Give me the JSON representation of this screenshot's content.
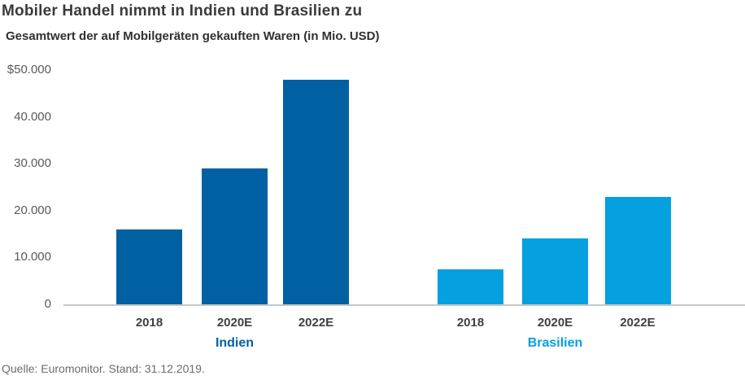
{
  "header": {
    "title": "Mobiler Handel nimmt in Indien und Brasilien zu",
    "subtitle": "Gesamtwert der auf Mobilgeräten gekauften Waren (in Mio. USD)"
  },
  "chart_data": {
    "type": "bar",
    "title": "Mobiler Handel nimmt in Indien und Brasilien zu",
    "subtitle": "Gesamtwert der auf Mobilgeräten gekauften Waren (in Mio. USD)",
    "categories": [
      "2018",
      "2020E",
      "2022E"
    ],
    "series": [
      {
        "name": "Indien",
        "values": [
          16000,
          29000,
          48000
        ],
        "color": "#0060a2"
      },
      {
        "name": "Brasilien",
        "values": [
          7500,
          14000,
          23000
        ],
        "color": "#04a0e0"
      }
    ],
    "xlabel": "",
    "ylabel": "",
    "ylim": [
      0,
      50000
    ],
    "yticks": [
      {
        "value": 50000,
        "label": "$50.000"
      },
      {
        "value": 40000,
        "label": "40.000"
      },
      {
        "value": 30000,
        "label": "30.000"
      },
      {
        "value": 20000,
        "label": "20.000"
      },
      {
        "value": 10000,
        "label": "10.000"
      },
      {
        "value": 0,
        "label": "0"
      }
    ],
    "grid": false,
    "legend_position": "group-labels-below-axis",
    "axis_line_color": "#c6c7c8"
  },
  "footer": {
    "source": "Quelle: Euromonitor. Stand: 31.12.2019."
  }
}
